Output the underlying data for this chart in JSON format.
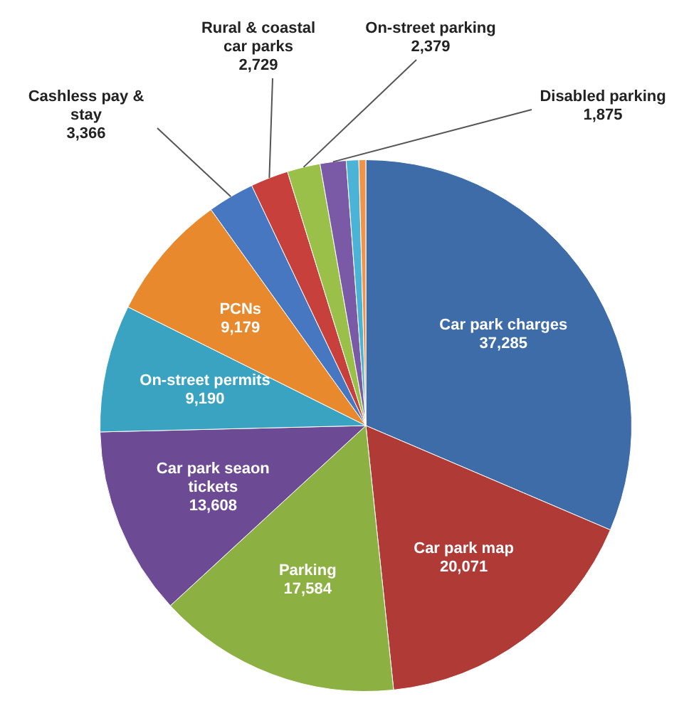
{
  "chart_data": {
    "type": "pie",
    "categories": [
      "Car park charges",
      "Car park map",
      "Parking",
      "Car park seaon tickets",
      "On-street permits",
      "PCNs",
      "Cashless pay & stay",
      "Rural & coastal car parks",
      "On-street parking",
      "Disabled parking",
      null,
      null
    ],
    "values": [
      37285,
      20071,
      17584,
      13608,
      9190,
      9179,
      3366,
      2729,
      2379,
      1875,
      900,
      500
    ],
    "value_labels": [
      "37,285",
      "20,071",
      "17,584",
      "13,608",
      "9,190",
      "9,179",
      "3,366",
      "2,729",
      "2,379",
      "1,875",
      null,
      null
    ],
    "colors": [
      "#3d6ca8",
      "#b03a36",
      "#8db043",
      "#6c4a94",
      "#3aa3c2",
      "#e8892e",
      "#4677c0",
      "#c8403c",
      "#9bc04a",
      "#7a5aa6",
      "#4bb3d6",
      "#f0944a"
    ],
    "legend": false
  }
}
